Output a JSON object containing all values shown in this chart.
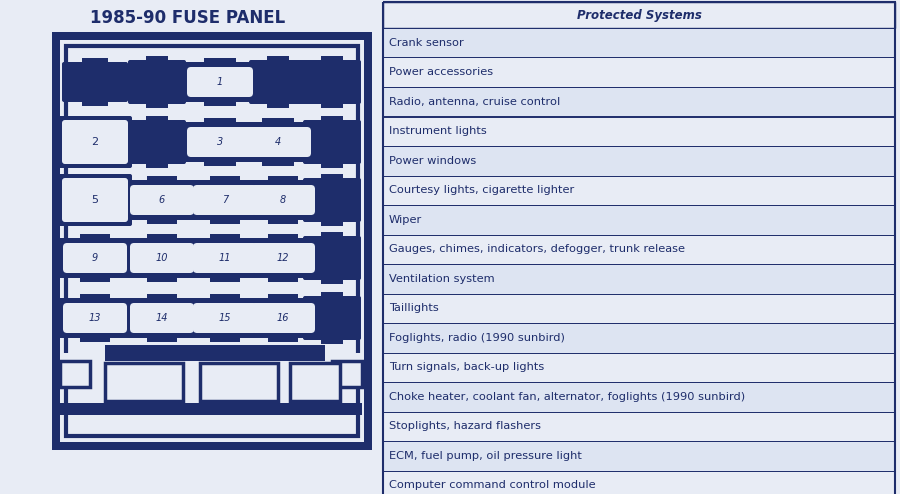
{
  "title": "1985-90 FUSE PANEL",
  "bg_color": "#e8ecf5",
  "panel_color": "#1e2d6b",
  "text_color": "#1e2d6b",
  "table_header": "Protected Systems",
  "table_rows": [
    "Crank sensor",
    "Power accessories",
    "Radio, antenna, cruise control",
    "Instrument lights",
    "Power windows",
    "Courtesy lights, cigarette lighter",
    "Wiper",
    "Gauges, chimes, indicators, defogger, trunk release",
    "Ventilation system",
    "Taillights",
    "Foglights, radio (1990 sunbird)",
    "Turn signals, back-up lights",
    "Choke heater, coolant fan, alternator, foglights (1990 sunbird)",
    "Stoplights, hazard flashers",
    "ECM, fuel pump, oil pressure light",
    "Computer command control module"
  ],
  "title_fontsize": 12,
  "label_fontsize": 8.2,
  "header_fontsize": 8.5,
  "fuse_label_fontsize": 7.0
}
